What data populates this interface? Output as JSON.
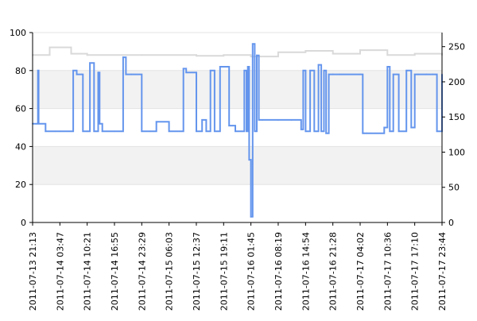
{
  "chart_data": {
    "type": "line",
    "grid": true,
    "grid_style": "alternating horizontal bands",
    "band_colors": [
      "#ffffff",
      "#f2f2f2"
    ],
    "x_ticks": [
      "2011-07-13 21:13",
      "2011-07-14 03:47",
      "2011-07-14 10:21",
      "2011-07-14 16:55",
      "2011-07-14 23:29",
      "2011-07-15 06:03",
      "2011-07-15 12:37",
      "2011-07-15 19:11",
      "2011-07-16 01:45",
      "2011-07-16 08:19",
      "2011-07-16 14:54",
      "2011-07-16 21:28",
      "2011-07-17 04:02",
      "2011-07-17 10:36",
      "2011-07-17 17:10",
      "2011-07-17 23:44"
    ],
    "y_left": {
      "ylim": [
        0,
        100
      ],
      "ticks": [
        "0",
        "20",
        "40",
        "60",
        "80",
        "100"
      ]
    },
    "y_right": {
      "ylim": [
        0,
        270
      ],
      "ticks": [
        "0",
        "50",
        "100",
        "150",
        "200",
        "250"
      ]
    },
    "series": [
      {
        "axis": "right",
        "color": "#d9d9d9",
        "x": [
          "2011-07-13 21:13",
          "2011-07-14 01:20",
          "2011-07-14 03:47",
          "2011-07-14 06:30",
          "2011-07-14 10:21",
          "2011-07-14 16:55",
          "2011-07-14 23:29",
          "2011-07-15 06:03",
          "2011-07-15 12:37",
          "2011-07-15 19:11",
          "2011-07-16 01:45",
          "2011-07-16 08:19",
          "2011-07-16 14:54",
          "2011-07-16 21:28",
          "2011-07-17 04:02",
          "2011-07-17 10:36",
          "2011-07-17 17:10",
          "2011-07-17 23:44"
        ],
        "values": [
          238,
          249,
          249,
          240,
          238,
          238,
          238,
          238,
          237,
          238,
          236,
          242,
          244,
          240,
          245,
          238,
          240,
          238
        ]
      },
      {
        "axis": "left",
        "color": "#6495ed",
        "x": [
          "2011-07-13 21:13",
          "2011-07-13 22:20",
          "2011-07-13 22:30",
          "2011-07-13 22:40",
          "2011-07-14 00:20",
          "2011-07-14 02:40",
          "2011-07-14 03:47",
          "2011-07-14 06:00",
          "2011-07-14 07:00",
          "2011-07-14 07:50",
          "2011-07-14 09:00",
          "2011-07-14 09:20",
          "2011-07-14 10:21",
          "2011-07-14 11:00",
          "2011-07-14 12:00",
          "2011-07-14 13:00",
          "2011-07-14 13:20",
          "2011-07-14 14:00",
          "2011-07-14 16:55",
          "2011-07-14 18:30",
          "2011-07-14 19:00",
          "2011-07-14 19:40",
          "2011-07-14 21:00",
          "2011-07-14 23:29",
          "2011-07-15 01:30",
          "2011-07-15 03:00",
          "2011-07-15 06:03",
          "2011-07-15 08:30",
          "2011-07-15 09:30",
          "2011-07-15 10:10",
          "2011-07-15 12:37",
          "2011-07-15 14:00",
          "2011-07-15 15:00",
          "2011-07-15 16:00",
          "2011-07-15 17:00",
          "2011-07-15 18:20",
          "2011-07-15 19:11",
          "2011-07-15 20:30",
          "2011-07-15 22:00",
          "2011-07-16 00:10",
          "2011-07-16 00:40",
          "2011-07-16 01:00",
          "2011-07-16 01:20",
          "2011-07-16 01:45",
          "2011-07-16 02:10",
          "2011-07-16 02:40",
          "2011-07-16 03:10",
          "2011-07-16 03:40",
          "2011-07-16 04:30",
          "2011-07-16 08:19",
          "2011-07-16 11:30",
          "2011-07-16 13:50",
          "2011-07-16 14:20",
          "2011-07-16 14:54",
          "2011-07-16 16:00",
          "2011-07-16 17:00",
          "2011-07-16 18:00",
          "2011-07-16 18:40",
          "2011-07-16 19:20",
          "2011-07-16 19:50",
          "2011-07-16 20:30",
          "2011-07-16 21:28",
          "2011-07-16 23:00",
          "2011-07-17 04:02",
          "2011-07-17 04:40",
          "2011-07-17 05:00",
          "2011-07-17 05:40",
          "2011-07-17 06:30",
          "2011-07-17 09:50",
          "2011-07-17 10:36",
          "2011-07-17 11:10",
          "2011-07-17 12:00",
          "2011-07-17 13:20",
          "2011-07-17 15:10",
          "2011-07-17 16:20",
          "2011-07-17 17:10",
          "2011-07-17 18:00",
          "2011-07-17 20:00",
          "2011-07-17 21:30",
          "2011-07-17 22:30",
          "2011-07-17 23:44"
        ],
        "values": [
          52,
          52,
          80,
          52,
          48,
          48,
          48,
          48,
          80,
          78,
          78,
          48,
          48,
          84,
          48,
          79,
          52,
          48,
          48,
          48,
          87,
          78,
          78,
          48,
          48,
          53,
          48,
          48,
          81,
          79,
          48,
          54,
          48,
          80,
          48,
          82,
          82,
          51,
          48,
          80,
          48,
          82,
          33,
          3,
          94,
          48,
          88,
          54,
          54,
          54,
          54,
          49,
          80,
          48,
          80,
          48,
          83,
          48,
          80,
          47,
          78,
          78,
          78,
          78,
          47,
          47,
          47,
          47,
          50,
          82,
          48,
          78,
          48,
          80,
          50,
          78,
          78,
          78,
          78,
          48,
          78
        ]
      }
    ]
  }
}
